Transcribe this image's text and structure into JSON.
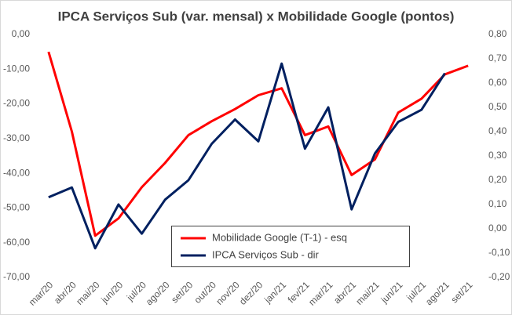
{
  "chart_data": {
    "type": "line",
    "title": "IPCA Serviços Sub (var. mensal) x Mobilidade Google (pontos)",
    "categories": [
      "mar/20",
      "abr/20",
      "mai/20",
      "jun/20",
      "jul/20",
      "ago/20",
      "set/20",
      "out/20",
      "nov/20",
      "dez/20",
      "jan/21",
      "fev/21",
      "mar/21",
      "abr/21",
      "mai/21",
      "jun/21",
      "jul/21",
      "ago/21",
      "set/21"
    ],
    "series": [
      {
        "name": "Mobilidade Google (T-1) - esq",
        "color": "#ff0000",
        "axis": "y",
        "values": [
          -5,
          -28,
          -58,
          -53,
          -44,
          -37,
          -29,
          -25,
          -21.5,
          -17.5,
          -15.5,
          -29,
          -26.5,
          -40.5,
          -36,
          -22.5,
          -18.5,
          -11.5,
          -9
        ]
      },
      {
        "name": "IPCA Serviços Sub - dir",
        "color": "#002060",
        "axis": "y2",
        "values": [
          0.13,
          0.17,
          -0.08,
          0.1,
          -0.02,
          0.12,
          0.2,
          0.35,
          0.45,
          0.36,
          0.68,
          0.33,
          0.5,
          0.08,
          0.31,
          0.44,
          0.49,
          0.64,
          null
        ]
      }
    ],
    "ylim": [
      -70,
      0
    ],
    "yticks": [
      {
        "value": 0,
        "label": "0,00"
      },
      {
        "value": -10,
        "label": "-10,00"
      },
      {
        "value": -20,
        "label": "-20,00"
      },
      {
        "value": -30,
        "label": "-30,00"
      },
      {
        "value": -40,
        "label": "-40,00"
      },
      {
        "value": -50,
        "label": "-50,00"
      },
      {
        "value": -60,
        "label": "-60,00"
      },
      {
        "value": -70,
        "label": "-70,00"
      }
    ],
    "y2lim": [
      -0.2,
      0.8
    ],
    "y2ticks": [
      {
        "value": 0.8,
        "label": "0,80"
      },
      {
        "value": 0.7,
        "label": "0,70"
      },
      {
        "value": 0.6,
        "label": "0,60"
      },
      {
        "value": 0.5,
        "label": "0,50"
      },
      {
        "value": 0.4,
        "label": "0,40"
      },
      {
        "value": 0.3,
        "label": "0,30"
      },
      {
        "value": 0.2,
        "label": "0,20"
      },
      {
        "value": 0.1,
        "label": "0,10"
      },
      {
        "value": 0,
        "label": "0,00"
      },
      {
        "value": -0.1,
        "label": "-0,10"
      },
      {
        "value": -0.2,
        "label": "-0,20"
      }
    ],
    "grid": false,
    "legend": "bottom-center"
  }
}
